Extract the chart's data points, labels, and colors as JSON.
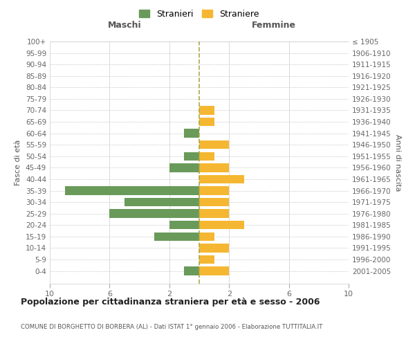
{
  "age_groups": [
    "100+",
    "95-99",
    "90-94",
    "85-89",
    "80-84",
    "75-79",
    "70-74",
    "65-69",
    "60-64",
    "55-59",
    "50-54",
    "45-49",
    "40-44",
    "35-39",
    "30-34",
    "25-29",
    "20-24",
    "15-19",
    "10-14",
    "5-9",
    "0-4"
  ],
  "birth_years": [
    "≤ 1905",
    "1906-1910",
    "1911-1915",
    "1916-1920",
    "1921-1925",
    "1926-1930",
    "1931-1935",
    "1936-1940",
    "1941-1945",
    "1946-1950",
    "1951-1955",
    "1956-1960",
    "1961-1965",
    "1966-1970",
    "1971-1975",
    "1976-1980",
    "1981-1985",
    "1986-1990",
    "1991-1995",
    "1996-2000",
    "2001-2005"
  ],
  "males": [
    0,
    0,
    0,
    0,
    0,
    0,
    0,
    0,
    1,
    0,
    1,
    2,
    0,
    9,
    5,
    6,
    2,
    3,
    0,
    0,
    1
  ],
  "females": [
    0,
    0,
    0,
    0,
    0,
    0,
    1,
    1,
    0,
    2,
    1,
    2,
    3,
    2,
    2,
    2,
    3,
    1,
    2,
    1,
    2
  ],
  "male_color": "#6a9a5a",
  "female_color": "#f5b731",
  "dashed_line_color": "#aaa84a",
  "title": "Popolazione per cittadinanza straniera per età e sesso - 2006",
  "subtitle": "COMUNE DI BORGHETTO DI BORBERA (AL) - Dati ISTAT 1° gennaio 2006 - Elaborazione TUTTITALIA.IT",
  "ylabel_left": "Fasce di età",
  "ylabel_right": "Anni di nascita",
  "xlabel_maschi": "Maschi",
  "xlabel_femmine": "Femmine",
  "legend_stranieri": "Stranieri",
  "legend_straniere": "Straniere",
  "xlim": 10,
  "bg_color": "#ffffff",
  "grid_color": "#cccccc"
}
